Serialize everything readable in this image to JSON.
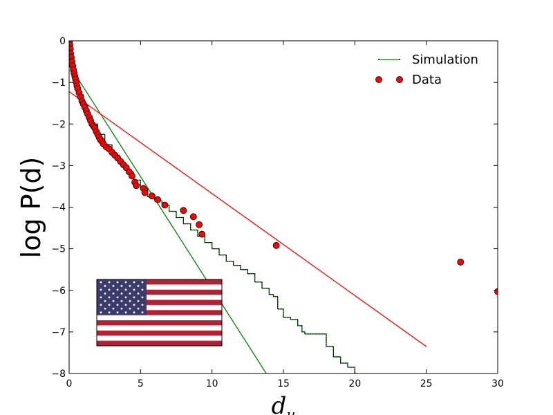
{
  "chart_data": {
    "type": "scatter",
    "title": "",
    "xlabel": "d",
    "xlabel_subscript": "u",
    "ylabel": "log P(d)",
    "xlim": [
      0,
      30
    ],
    "ylim": [
      -8,
      0
    ],
    "xticks": [
      0,
      5,
      10,
      15,
      20,
      25,
      30
    ],
    "yticks": [
      0,
      -1,
      -2,
      -3,
      -4,
      -5,
      -6,
      -7,
      -8
    ],
    "tick_labels_x": [
      "0",
      "5",
      "10",
      "15",
      "20",
      "25",
      "30"
    ],
    "tick_labels_y": [
      "0",
      "−1",
      "−2",
      "−3",
      "−4",
      "−5",
      "−6",
      "−7",
      "−8"
    ],
    "grid": false,
    "legend_position": "top-right",
    "legend": [
      "Simulation",
      "Data"
    ],
    "colors": {
      "simulation": "#008000",
      "simulation_curve": "#000000",
      "data": "#ff0000",
      "data_fit": "#ff0000"
    },
    "series": [
      {
        "name": "Simulation",
        "kind": "step",
        "x": [
          0.0,
          0.15,
          0.3,
          0.5,
          0.7,
          1.0,
          1.3,
          1.6,
          2.0,
          2.5,
          3.0,
          3.5,
          4.0,
          4.5,
          5.0,
          5.5,
          6.0,
          6.5,
          7.0,
          7.5,
          8.0,
          8.5,
          9.0,
          9.5,
          10.0,
          10.5,
          11.0,
          11.5,
          12.0,
          12.5,
          13.0,
          13.5,
          14.0,
          14.3,
          14.6,
          15.0,
          15.5,
          16.0,
          16.3,
          16.5,
          17.0,
          17.5,
          17.8,
          18.0,
          18.5,
          19.0,
          19.5,
          19.8,
          20.0,
          20.1
        ],
        "y": [
          0.0,
          -0.45,
          -0.75,
          -1.05,
          -1.3,
          -1.55,
          -1.8,
          -2.0,
          -2.25,
          -2.5,
          -2.75,
          -2.95,
          -3.15,
          -3.35,
          -3.55,
          -3.75,
          -3.85,
          -3.95,
          -4.1,
          -4.25,
          -4.4,
          -4.55,
          -4.7,
          -4.85,
          -5.0,
          -5.15,
          -5.3,
          -5.4,
          -5.5,
          -5.6,
          -5.8,
          -5.95,
          -6.1,
          -6.15,
          -6.45,
          -6.65,
          -6.7,
          -6.85,
          -7.0,
          -7.05,
          -7.05,
          -7.05,
          -7.05,
          -7.35,
          -7.6,
          -7.75,
          -7.85,
          -7.85,
          -8.0,
          -8.05
        ]
      },
      {
        "name": "Data",
        "kind": "points",
        "x": [
          0.02,
          0.05,
          0.08,
          0.1,
          0.15,
          0.2,
          0.25,
          0.3,
          0.35,
          0.4,
          0.45,
          0.5,
          0.55,
          0.6,
          0.7,
          0.8,
          0.9,
          1.0,
          1.1,
          1.2,
          1.3,
          1.4,
          1.5,
          1.6,
          1.7,
          1.8,
          1.9,
          2.0,
          2.1,
          2.2,
          2.3,
          2.4,
          2.6,
          2.8,
          3.0,
          3.2,
          3.4,
          3.6,
          3.8,
          4.0,
          4.2,
          4.4,
          4.6,
          4.7,
          5.2,
          5.3,
          5.8,
          6.2,
          6.7,
          8.0,
          8.7,
          9.1,
          9.3,
          14.5,
          27.4,
          30.0
        ],
        "y": [
          -0.02,
          -0.1,
          -0.2,
          -0.3,
          -0.4,
          -0.5,
          -0.6,
          -0.7,
          -0.78,
          -0.85,
          -0.92,
          -1.0,
          -1.08,
          -1.15,
          -1.25,
          -1.35,
          -1.45,
          -1.52,
          -1.6,
          -1.68,
          -1.76,
          -1.84,
          -1.92,
          -2.0,
          -2.05,
          -2.1,
          -2.18,
          -2.25,
          -2.32,
          -2.38,
          -2.42,
          -2.48,
          -2.55,
          -2.6,
          -2.68,
          -2.75,
          -2.82,
          -2.9,
          -2.98,
          -3.05,
          -3.15,
          -3.25,
          -3.4,
          -3.48,
          -3.55,
          -3.65,
          -3.73,
          -3.82,
          -3.95,
          -4.08,
          -4.23,
          -4.42,
          -4.65,
          -4.92,
          -5.32,
          -6.03
        ]
      },
      {
        "name": "",
        "kind": "line",
        "x": [
          0.6,
          13.8
        ],
        "y": [
          -0.9,
          -8.0
        ]
      },
      {
        "name": "",
        "kind": "line",
        "x": [
          0.0,
          25.0
        ],
        "y": [
          -1.22,
          -7.35
        ]
      }
    ],
    "inset_image": "flag-of-united-states"
  }
}
